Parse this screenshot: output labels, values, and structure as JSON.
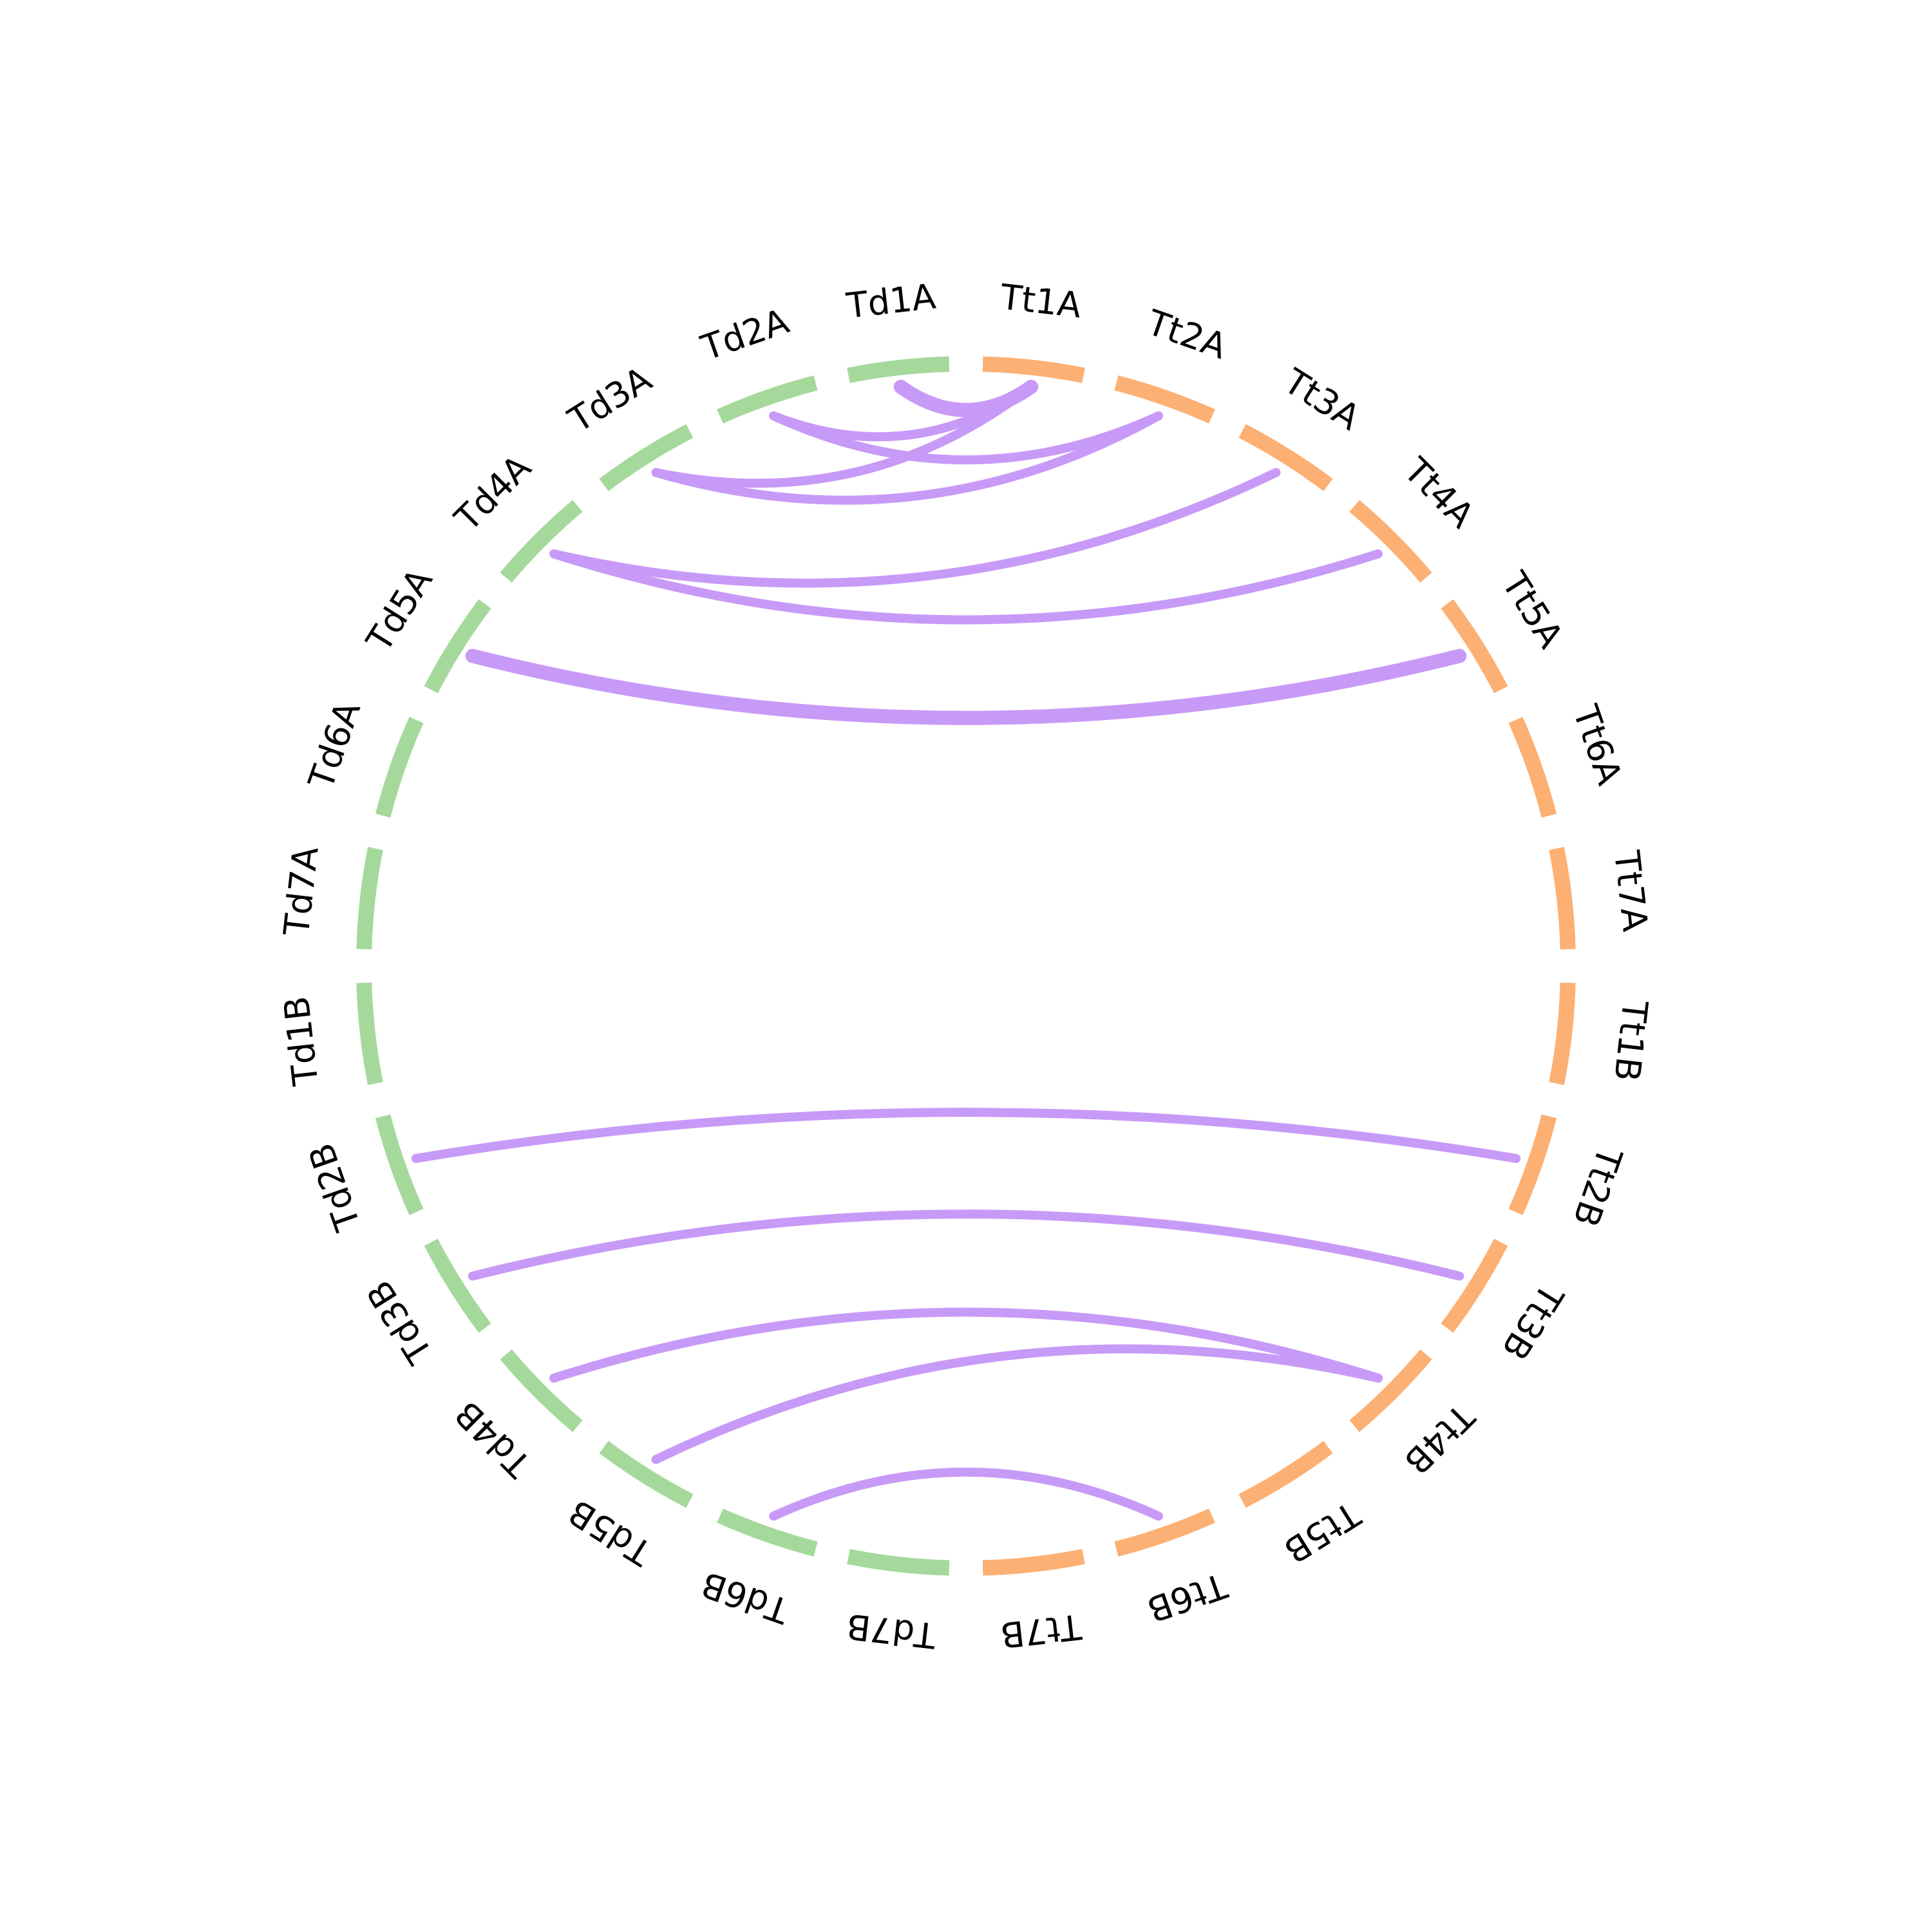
{
  "colors": {
    "td_group": "#a5d99c",
    "tt_group": "#fcb073",
    "link": "#c89af7",
    "background": "#ffffff"
  },
  "segments": [
    {
      "id": "Td1A",
      "label": "Td1A",
      "group": "td"
    },
    {
      "id": "Td2A",
      "label": "Td2A",
      "group": "td"
    },
    {
      "id": "Td3A",
      "label": "Td3A",
      "group": "td"
    },
    {
      "id": "Td4A",
      "label": "Td4A",
      "group": "td"
    },
    {
      "id": "Td5A",
      "label": "Td5A",
      "group": "td"
    },
    {
      "id": "Td6A",
      "label": "Td6A",
      "group": "td"
    },
    {
      "id": "Td7A",
      "label": "Td7A",
      "group": "td"
    },
    {
      "id": "Td1B",
      "label": "Td1B",
      "group": "td"
    },
    {
      "id": "Td2B",
      "label": "Td2B",
      "group": "td"
    },
    {
      "id": "Td3B",
      "label": "Td3B",
      "group": "td"
    },
    {
      "id": "Td4B",
      "label": "Td4B",
      "group": "td"
    },
    {
      "id": "Td5B",
      "label": "Td5B",
      "group": "td"
    },
    {
      "id": "Td6B",
      "label": "Td6B",
      "group": "td"
    },
    {
      "id": "Td7B",
      "label": "Td7B",
      "group": "td"
    },
    {
      "id": "Tt7B",
      "label": "Tt7B",
      "group": "tt"
    },
    {
      "id": "Tt6B",
      "label": "Tt6B",
      "group": "tt"
    },
    {
      "id": "Tt5B",
      "label": "Tt5B",
      "group": "tt"
    },
    {
      "id": "Tt4B",
      "label": "Tt4B",
      "group": "tt"
    },
    {
      "id": "Tt3B",
      "label": "Tt3B",
      "group": "tt"
    },
    {
      "id": "Tt2B",
      "label": "Tt2B",
      "group": "tt"
    },
    {
      "id": "Tt1B",
      "label": "Tt1B",
      "group": "tt"
    },
    {
      "id": "Tt7A",
      "label": "Tt7A",
      "group": "tt"
    },
    {
      "id": "Tt6A",
      "label": "Tt6A",
      "group": "tt"
    },
    {
      "id": "Tt5A",
      "label": "Tt5A",
      "group": "tt"
    },
    {
      "id": "Tt4A",
      "label": "Tt4A",
      "group": "tt"
    },
    {
      "id": "Tt3A",
      "label": "Tt3A",
      "group": "tt"
    },
    {
      "id": "Tt2A",
      "label": "Tt2A",
      "group": "tt"
    },
    {
      "id": "Tt1A",
      "label": "Tt1A",
      "group": "tt"
    }
  ],
  "links": [
    {
      "from": "Td1A",
      "to": "Tt1A",
      "weight": 3
    },
    {
      "from": "Td2A",
      "to": "Tt1A",
      "weight": 1
    },
    {
      "from": "Td2A",
      "to": "Tt2A",
      "weight": 1
    },
    {
      "from": "Td3A",
      "to": "Tt1A",
      "weight": 1
    },
    {
      "from": "Td3A",
      "to": "Tt2A",
      "weight": 1
    },
    {
      "from": "Td4A",
      "to": "Tt3A",
      "weight": 1
    },
    {
      "from": "Td5A",
      "to": "Tt5A",
      "weight": 3
    },
    {
      "from": "Td4A",
      "to": "Tt4A",
      "weight": 1
    },
    {
      "from": "Td2B",
      "to": "Tt2B",
      "weight": 1
    },
    {
      "from": "Td3B",
      "to": "Tt3B",
      "weight": 1
    },
    {
      "from": "Td4B",
      "to": "Tt4B",
      "weight": 1
    },
    {
      "from": "Td5B",
      "to": "Tt4B",
      "weight": 1
    },
    {
      "from": "Td6B",
      "to": "Tt6B",
      "weight": 1
    }
  ]
}
